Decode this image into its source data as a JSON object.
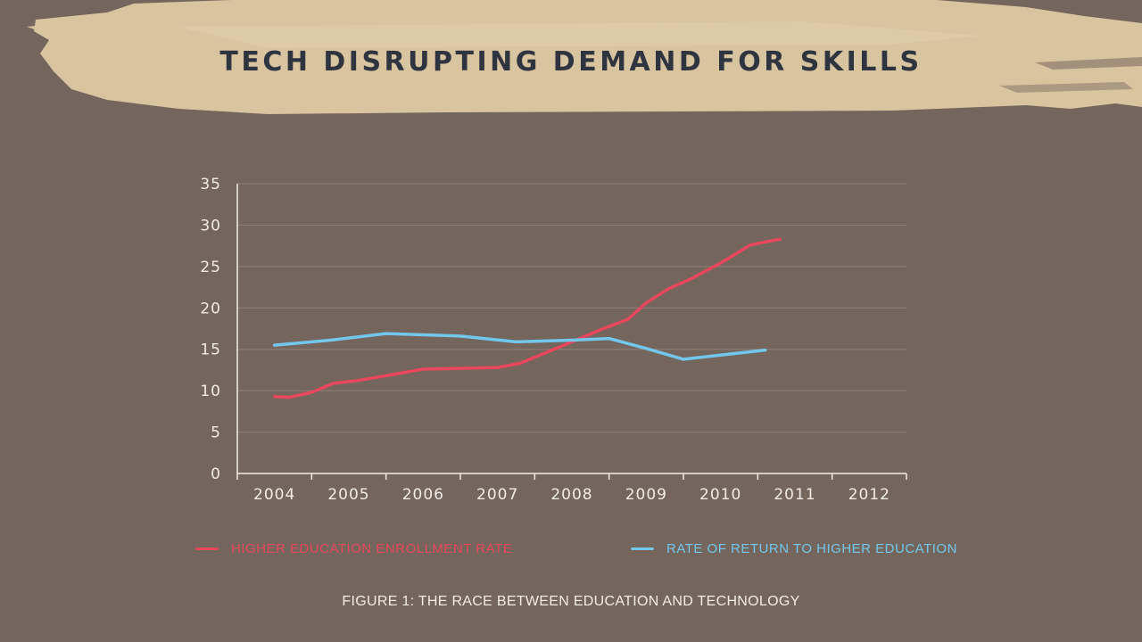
{
  "title": "TECH DISRUPTING DEMAND FOR SKILLS",
  "caption": "FIGURE 1: THE RACE BETWEEN EDUCATION AND TECHNOLOGY",
  "colors": {
    "background": "#74665c",
    "banner": "#d9c4a0",
    "title": "#2e3440",
    "axis": "#f2ece6",
    "grid": "#8e8178"
  },
  "chart_data": {
    "type": "line",
    "title": "TECH DISRUPTING DEMAND FOR SKILLS",
    "xlabel": "",
    "ylabel": "",
    "categories": [
      "2004",
      "2005",
      "2006",
      "2007",
      "2008",
      "2009",
      "2010",
      "2011",
      "2012"
    ],
    "ylim": [
      0,
      35
    ],
    "yticks": [
      0,
      5,
      10,
      15,
      20,
      25,
      30,
      35
    ],
    "grid": true,
    "legend_position": "bottom",
    "series": [
      {
        "name": "HIGHER EDUCATION ENROLLMENT RATE",
        "color": "#e8475d",
        "points": [
          [
            2004.0,
            9.3
          ],
          [
            2004.2,
            9.2
          ],
          [
            2004.5,
            9.8
          ],
          [
            2004.8,
            10.9
          ],
          [
            2005.1,
            11.2
          ],
          [
            2005.5,
            11.8
          ],
          [
            2006.0,
            12.6
          ],
          [
            2006.5,
            12.7
          ],
          [
            2007.0,
            12.8
          ],
          [
            2007.3,
            13.3
          ],
          [
            2007.6,
            14.4
          ],
          [
            2008.0,
            15.9
          ],
          [
            2008.4,
            17.4
          ],
          [
            2008.75,
            18.6
          ],
          [
            2009.0,
            20.6
          ],
          [
            2009.3,
            22.3
          ],
          [
            2009.6,
            23.5
          ],
          [
            2010.0,
            25.4
          ],
          [
            2010.4,
            27.6
          ],
          [
            2010.8,
            28.3
          ]
        ]
      },
      {
        "name": "RATE OF RETURN TO HIGHER EDUCATION",
        "color": "#73c7ec",
        "points": [
          [
            2004.0,
            15.5
          ],
          [
            2004.75,
            16.1
          ],
          [
            2005.5,
            16.9
          ],
          [
            2006.5,
            16.6
          ],
          [
            2007.25,
            15.9
          ],
          [
            2008.0,
            16.1
          ],
          [
            2008.5,
            16.3
          ],
          [
            2009.0,
            15.1
          ],
          [
            2009.5,
            13.8
          ],
          [
            2010.0,
            14.3
          ],
          [
            2010.6,
            14.9
          ]
        ]
      }
    ]
  }
}
